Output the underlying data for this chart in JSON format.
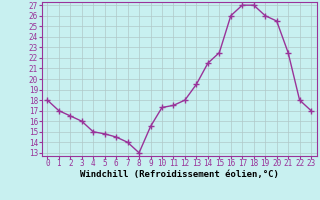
{
  "x": [
    0,
    1,
    2,
    3,
    4,
    5,
    6,
    7,
    8,
    9,
    10,
    11,
    12,
    13,
    14,
    15,
    16,
    17,
    18,
    19,
    20,
    21,
    22,
    23
  ],
  "y": [
    18,
    17,
    16.5,
    16,
    15,
    14.8,
    14.5,
    14,
    13,
    15.5,
    17.3,
    17.5,
    18,
    19.5,
    21.5,
    22.5,
    26,
    27,
    27,
    26,
    25.5,
    22.5,
    18,
    17
  ],
  "line_color": "#993399",
  "marker": "+",
  "marker_size": 4,
  "marker_lw": 1.0,
  "background_color": "#c8f0f0",
  "grid_color": "#b0c8c8",
  "xlabel": "Windchill (Refroidissement éolien,°C)",
  "ylim": [
    13,
    27
  ],
  "xlim": [
    -0.5,
    23.5
  ],
  "yticks": [
    13,
    14,
    15,
    16,
    17,
    18,
    19,
    20,
    21,
    22,
    23,
    24,
    25,
    26,
    27
  ],
  "xticks": [
    0,
    1,
    2,
    3,
    4,
    5,
    6,
    7,
    8,
    9,
    10,
    11,
    12,
    13,
    14,
    15,
    16,
    17,
    18,
    19,
    20,
    21,
    22,
    23
  ],
  "tick_fontsize": 5.5,
  "xlabel_fontsize": 6.5,
  "line_width": 1.0,
  "spine_color": "#993399"
}
